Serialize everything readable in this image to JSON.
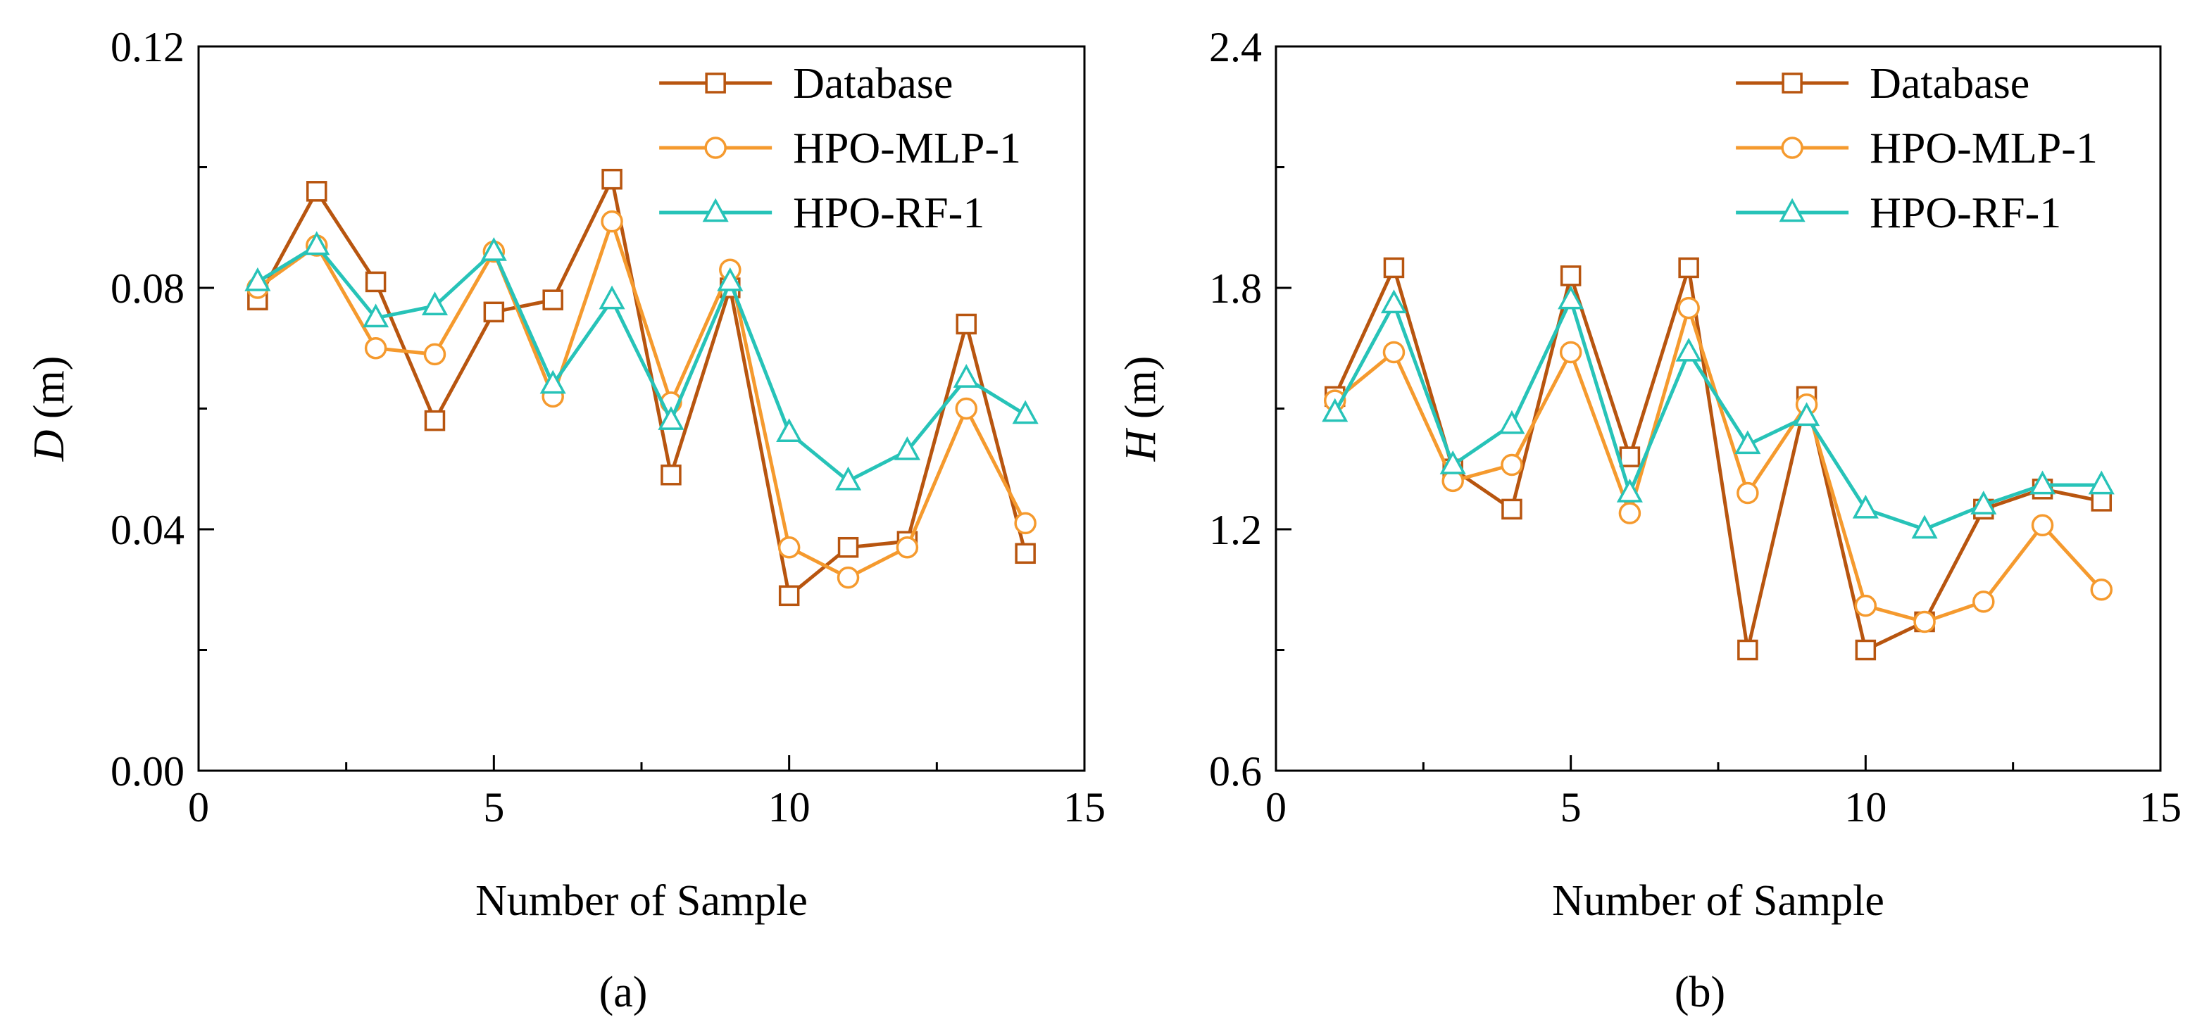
{
  "colors": {
    "database": "#B8550F",
    "mlp": "#F59A2E",
    "rf": "#27C3B8",
    "axis": "#000000"
  },
  "chart_data": [
    {
      "type": "line",
      "panel_label": "(a)",
      "xlabel": "Number of Sample",
      "ylabel_symbol": "D",
      "ylabel_unit": " (m)",
      "xlim": [
        0,
        15
      ],
      "ylim": [
        0,
        0.12
      ],
      "xticks": [
        0,
        5,
        10,
        15
      ],
      "xtick_labels": [
        "0",
        "5",
        "10",
        "15"
      ],
      "yticks": [
        0,
        0.04,
        0.08,
        0.12
      ],
      "ytick_labels": [
        "0.00",
        "0.04",
        "0.08",
        "0.12"
      ],
      "legend_position": "top-right",
      "x": [
        1,
        2,
        3,
        4,
        5,
        6,
        7,
        8,
        9,
        10,
        11,
        12,
        13,
        14
      ],
      "series": [
        {
          "name": "Database",
          "color_key": "database",
          "marker": "square",
          "values": [
            0.078,
            0.096,
            0.081,
            0.058,
            0.076,
            0.078,
            0.098,
            0.049,
            0.08,
            0.029,
            0.037,
            0.038,
            0.074,
            0.036
          ]
        },
        {
          "name": "HPO-MLP-1",
          "color_key": "mlp",
          "marker": "circle",
          "values": [
            0.08,
            0.087,
            0.07,
            0.069,
            0.086,
            0.062,
            0.091,
            0.061,
            0.083,
            0.037,
            0.032,
            0.037,
            0.06,
            0.041
          ]
        },
        {
          "name": "HPO-RF-1",
          "color_key": "rf",
          "marker": "triangle",
          "values": [
            0.081,
            0.087,
            0.075,
            0.077,
            0.086,
            0.064,
            0.078,
            0.058,
            0.081,
            0.056,
            0.048,
            0.053,
            0.065,
            0.059
          ]
        }
      ]
    },
    {
      "type": "line",
      "panel_label": "(b)",
      "xlabel": "Number of Sample",
      "ylabel_symbol": "H",
      "ylabel_unit": " (m)",
      "xlim": [
        0,
        15
      ],
      "ylim": [
        0.6,
        2.4
      ],
      "xticks": [
        0,
        5,
        10,
        15
      ],
      "xtick_labels": [
        "0",
        "5",
        "10",
        "15"
      ],
      "yticks": [
        0.6,
        1.2,
        1.8,
        2.4
      ],
      "ytick_labels": [
        "0.6",
        "1.2",
        "1.8",
        "2.4"
      ],
      "legend_position": "top-right",
      "x": [
        1,
        2,
        3,
        4,
        5,
        6,
        7,
        8,
        9,
        10,
        11,
        12,
        13,
        14
      ],
      "series": [
        {
          "name": "Database",
          "color_key": "database",
          "marker": "square",
          "values": [
            1.53,
            1.85,
            1.35,
            1.25,
            1.83,
            1.38,
            1.85,
            0.9,
            1.53,
            0.9,
            0.97,
            1.25,
            1.3,
            1.27
          ]
        },
        {
          "name": "HPO-MLP-1",
          "color_key": "mlp",
          "marker": "circle",
          "values": [
            1.52,
            1.64,
            1.32,
            1.36,
            1.64,
            1.24,
            1.75,
            1.29,
            1.51,
            1.01,
            0.97,
            1.02,
            1.21,
            1.05
          ]
        },
        {
          "name": "HPO-RF-1",
          "color_key": "rf",
          "marker": "triangle",
          "values": [
            1.49,
            1.76,
            1.36,
            1.46,
            1.77,
            1.29,
            1.64,
            1.41,
            1.48,
            1.25,
            1.2,
            1.26,
            1.31,
            1.31
          ]
        }
      ]
    }
  ]
}
